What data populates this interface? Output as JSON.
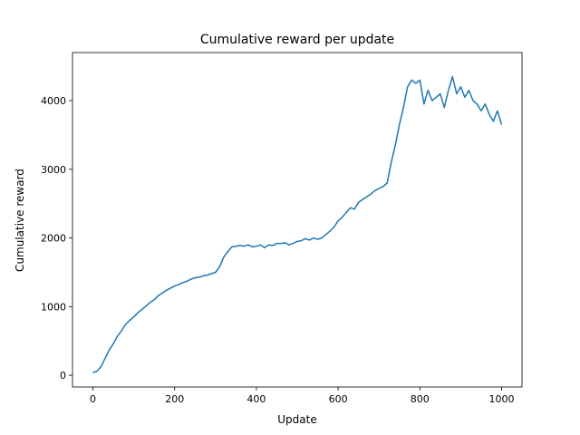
{
  "chart_data": {
    "type": "line",
    "title": "Cumulative reward per update",
    "xlabel": "Update",
    "ylabel": "Cumulative reward",
    "xlim": [
      -50,
      1050
    ],
    "ylim": [
      -170,
      4700
    ],
    "xticks": [
      0,
      200,
      400,
      600,
      800,
      1000
    ],
    "yticks": [
      0,
      1000,
      2000,
      3000,
      4000
    ],
    "grid": false,
    "legend": "none",
    "series": [
      {
        "color": "#1f77b4",
        "x": [
          0,
          10,
          20,
          30,
          40,
          50,
          60,
          70,
          80,
          90,
          100,
          110,
          120,
          130,
          140,
          150,
          160,
          170,
          180,
          190,
          200,
          210,
          220,
          230,
          240,
          250,
          260,
          270,
          280,
          290,
          300,
          310,
          320,
          330,
          340,
          350,
          360,
          370,
          380,
          390,
          400,
          410,
          420,
          430,
          440,
          450,
          460,
          470,
          480,
          490,
          500,
          510,
          520,
          530,
          540,
          550,
          560,
          570,
          580,
          590,
          600,
          610,
          620,
          630,
          640,
          650,
          660,
          670,
          680,
          690,
          700,
          710,
          720,
          730,
          740,
          750,
          760,
          770,
          780,
          790,
          800,
          810,
          820,
          830,
          840,
          850,
          860,
          870,
          880,
          890,
          900,
          910,
          920,
          930,
          940,
          950,
          960,
          970,
          980,
          990,
          1000
        ],
        "y": [
          40,
          60,
          130,
          250,
          370,
          460,
          570,
          650,
          740,
          800,
          850,
          910,
          960,
          1010,
          1060,
          1100,
          1160,
          1200,
          1240,
          1270,
          1300,
          1320,
          1350,
          1370,
          1400,
          1420,
          1430,
          1450,
          1460,
          1480,
          1500,
          1580,
          1720,
          1800,
          1870,
          1880,
          1890,
          1880,
          1900,
          1870,
          1880,
          1900,
          1860,
          1900,
          1890,
          1920,
          1920,
          1930,
          1900,
          1920,
          1950,
          1960,
          1990,
          1970,
          2000,
          1980,
          2000,
          2050,
          2100,
          2160,
          2250,
          2300,
          2370,
          2440,
          2420,
          2520,
          2560,
          2600,
          2640,
          2690,
          2720,
          2750,
          2800,
          3100,
          3350,
          3650,
          3900,
          4200,
          4300,
          4250,
          4300,
          3950,
          4150,
          4000,
          4050,
          4100,
          3900,
          4150,
          4350,
          4100,
          4200,
          4050,
          4150,
          4000,
          3950,
          3850,
          3950,
          3800,
          3700,
          3850,
          3650
        ]
      }
    ]
  }
}
